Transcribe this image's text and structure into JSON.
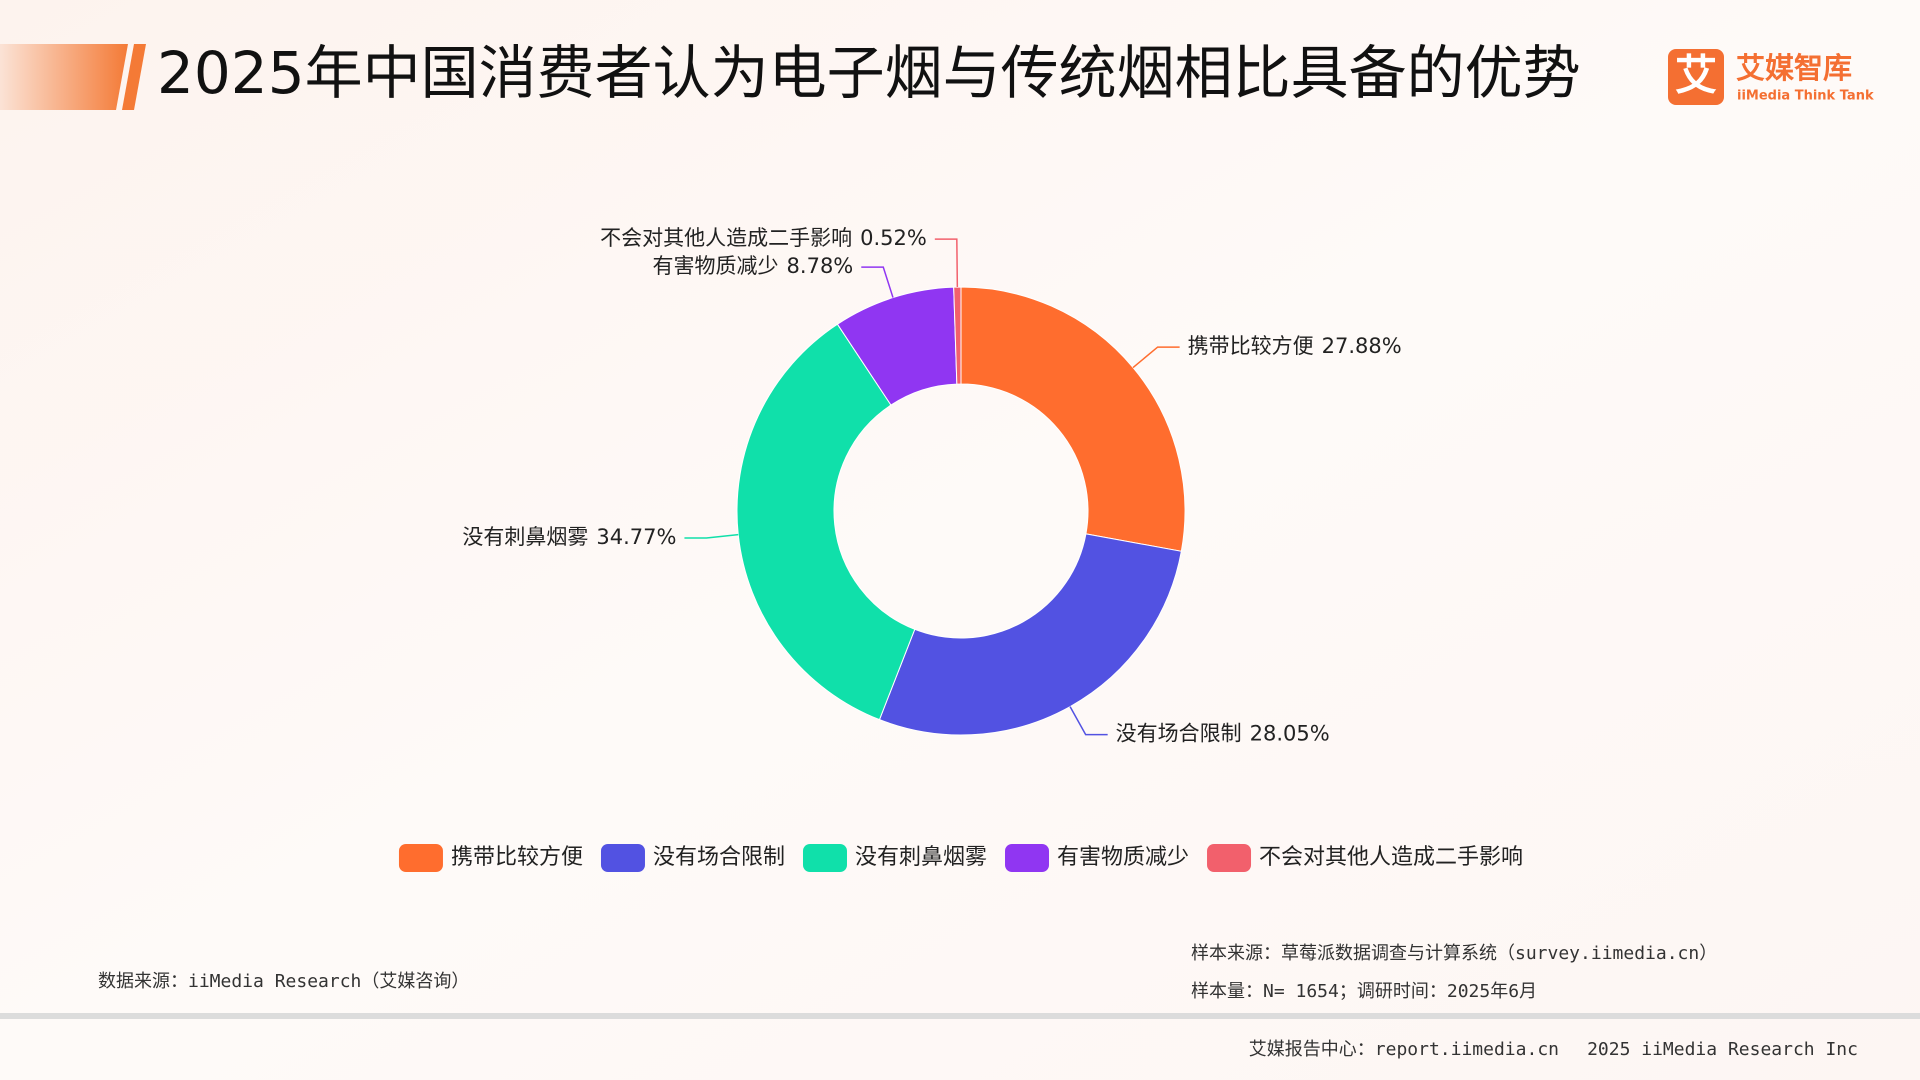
{
  "header": {
    "title": "2025年中国消费者认为电子烟与传统烟相比具备的优势",
    "logo_icon": "艾",
    "logo_name": "艾媒智库",
    "logo_subtitle": "iiMedia Think Tank"
  },
  "chart_data": {
    "type": "pie",
    "donut": true,
    "categories": [
      "携带比较方便",
      "没有场合限制",
      "没有刺鼻烟雾",
      "有害物质减少",
      "不会对其他人造成二手影响"
    ],
    "values": [
      27.88,
      28.05,
      34.77,
      8.78,
      0.52
    ],
    "value_labels": [
      "27.88%",
      "28.05%",
      "34.77%",
      "8.78%",
      "0.52%"
    ],
    "colors": [
      "#ff6d2e",
      "#5252e2",
      "#10e0aa",
      "#9036f2",
      "#f2606c"
    ],
    "legend": "bottom"
  },
  "sources": {
    "data_source": "数据来源：iiMedia Research（艾媒咨询）",
    "sample_source": "样本来源：草莓派数据调查与计算系统（survey.iimedia.cn）",
    "sample_size": "样本量：N= 1654；调研时间：2025年6月"
  },
  "footer": {
    "center": "艾媒报告中心：report.iimedia.cn",
    "copyright": "2025 iiMedia Research Inc"
  }
}
